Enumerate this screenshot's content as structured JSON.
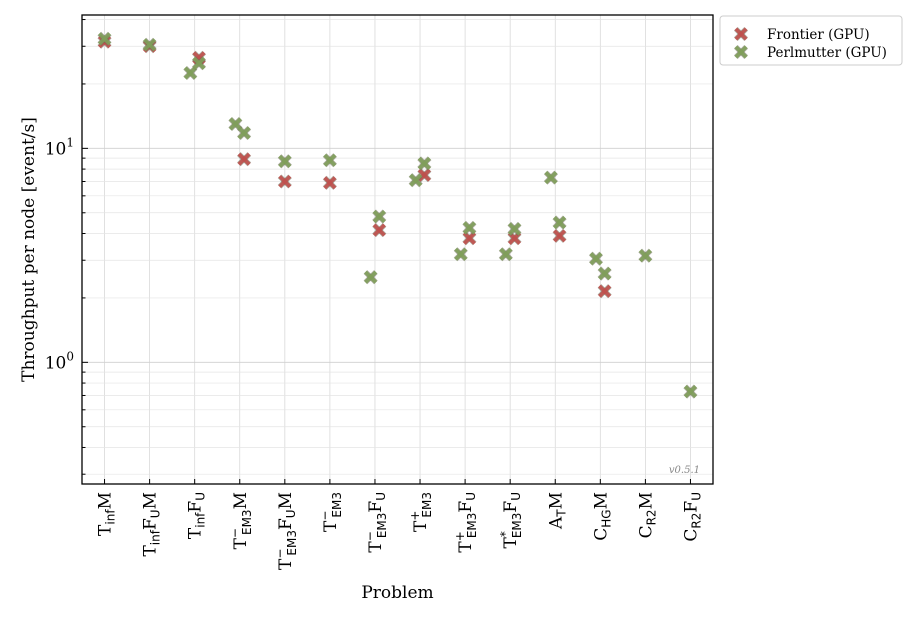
{
  "chart_data": {
    "type": "scatter",
    "title": "",
    "xlabel": "Problem",
    "ylabel": "Throughput per node [event/s]",
    "yscale": "log",
    "ylim": [
      0.27,
      42
    ],
    "grid": true,
    "legend_position": "outside-top-right",
    "version_label": "v0.5.1",
    "categories": [
      {
        "base": "T",
        "sub": "inf",
        "sup": "",
        "tail": [
          {
            "t": "M",
            "s": ""
          }
        ]
      },
      {
        "base": "T",
        "sub": "inf",
        "sup": "",
        "tail": [
          {
            "t": "F",
            "s": "U"
          },
          {
            "t": "M",
            "s": ""
          }
        ]
      },
      {
        "base": "T",
        "sub": "inf",
        "sup": "",
        "tail": [
          {
            "t": "F",
            "s": "U"
          }
        ]
      },
      {
        "base": "T",
        "sub": "EM3",
        "sup": "−",
        "tail": [
          {
            "t": "M",
            "s": ""
          }
        ]
      },
      {
        "base": "T",
        "sub": "EM3",
        "sup": "−",
        "tail": [
          {
            "t": "F",
            "s": "U"
          },
          {
            "t": "M",
            "s": ""
          }
        ]
      },
      {
        "base": "T",
        "sub": "EM3",
        "sup": "−",
        "tail": []
      },
      {
        "base": "T",
        "sub": "EM3",
        "sup": "−",
        "tail": [
          {
            "t": "F",
            "s": "U"
          }
        ]
      },
      {
        "base": "T",
        "sub": "EM3",
        "sup": "+",
        "tail": []
      },
      {
        "base": "T",
        "sub": "EM3",
        "sup": "+",
        "tail": [
          {
            "t": "F",
            "s": "U"
          }
        ]
      },
      {
        "base": "T",
        "sub": "EM3",
        "sup": "*",
        "tail": [
          {
            "t": "F",
            "s": "U"
          }
        ]
      },
      {
        "base": "A",
        "sub": "T",
        "sup": "",
        "tail": [
          {
            "t": "M",
            "s": ""
          }
        ]
      },
      {
        "base": "C",
        "sub": "HG",
        "sup": "",
        "tail": [
          {
            "t": "M",
            "s": ""
          }
        ]
      },
      {
        "base": "C",
        "sub": "R2",
        "sup": "",
        "tail": [
          {
            "t": "M",
            "s": ""
          }
        ]
      },
      {
        "base": "C",
        "sub": "R2",
        "sup": "",
        "tail": [
          {
            "t": "F",
            "s": "U"
          }
        ]
      }
    ],
    "yticks": [
      {
        "value": 1,
        "label_base": "10",
        "label_exp": "0"
      },
      {
        "value": 10,
        "label_base": "10",
        "label_exp": "1"
      }
    ],
    "series": [
      {
        "name": "Frontier (GPU)",
        "color": "#c0504d",
        "points": [
          {
            "x": 0,
            "dx": 0,
            "y": 31.5
          },
          {
            "x": 1,
            "dx": 0,
            "y": 30.0
          },
          {
            "x": 2,
            "dx": 0.08,
            "y": 26.5
          },
          {
            "x": 3,
            "dx": 0.08,
            "y": 8.9
          },
          {
            "x": 4,
            "dx": 0,
            "y": 7.0
          },
          {
            "x": 5,
            "dx": 0,
            "y": 6.9
          },
          {
            "x": 6,
            "dx": 0.08,
            "y": 4.15
          },
          {
            "x": 7,
            "dx": 0.08,
            "y": 7.5
          },
          {
            "x": 8,
            "dx": 0.08,
            "y": 3.8
          },
          {
            "x": 9,
            "dx": 0.08,
            "y": 3.8
          },
          {
            "x": 10,
            "dx": 0.08,
            "y": 3.9
          },
          {
            "x": 11,
            "dx": 0.08,
            "y": 2.15
          }
        ]
      },
      {
        "name": "Perlmutter (GPU)",
        "color": "#7f9f5a",
        "points": [
          {
            "x": 0,
            "dx": 0,
            "y": 32.5
          },
          {
            "x": 1,
            "dx": 0,
            "y": 30.5
          },
          {
            "x": 2,
            "dx": -0.08,
            "y": 22.5
          },
          {
            "x": 2,
            "dx": 0.08,
            "y": 25.0
          },
          {
            "x": 3,
            "dx": -0.08,
            "y": 13.0
          },
          {
            "x": 3,
            "dx": 0.08,
            "y": 11.8
          },
          {
            "x": 4,
            "dx": 0,
            "y": 8.7
          },
          {
            "x": 5,
            "dx": 0,
            "y": 8.8
          },
          {
            "x": 6,
            "dx": -0.08,
            "y": 2.5
          },
          {
            "x": 6,
            "dx": 0.08,
            "y": 4.8
          },
          {
            "x": 7,
            "dx": -0.08,
            "y": 7.1
          },
          {
            "x": 7,
            "dx": 0.08,
            "y": 8.5
          },
          {
            "x": 8,
            "dx": -0.08,
            "y": 3.2
          },
          {
            "x": 8,
            "dx": 0.08,
            "y": 4.25
          },
          {
            "x": 9,
            "dx": -0.08,
            "y": 3.2
          },
          {
            "x": 9,
            "dx": 0.08,
            "y": 4.2
          },
          {
            "x": 10,
            "dx": -0.08,
            "y": 7.3
          },
          {
            "x": 10,
            "dx": 0.08,
            "y": 4.5
          },
          {
            "x": 11,
            "dx": -0.08,
            "y": 3.05
          },
          {
            "x": 11,
            "dx": 0.08,
            "y": 2.6
          },
          {
            "x": 12,
            "dx": 0,
            "y": 3.15
          },
          {
            "x": 13,
            "dx": 0,
            "y": 0.73
          }
        ]
      }
    ]
  }
}
